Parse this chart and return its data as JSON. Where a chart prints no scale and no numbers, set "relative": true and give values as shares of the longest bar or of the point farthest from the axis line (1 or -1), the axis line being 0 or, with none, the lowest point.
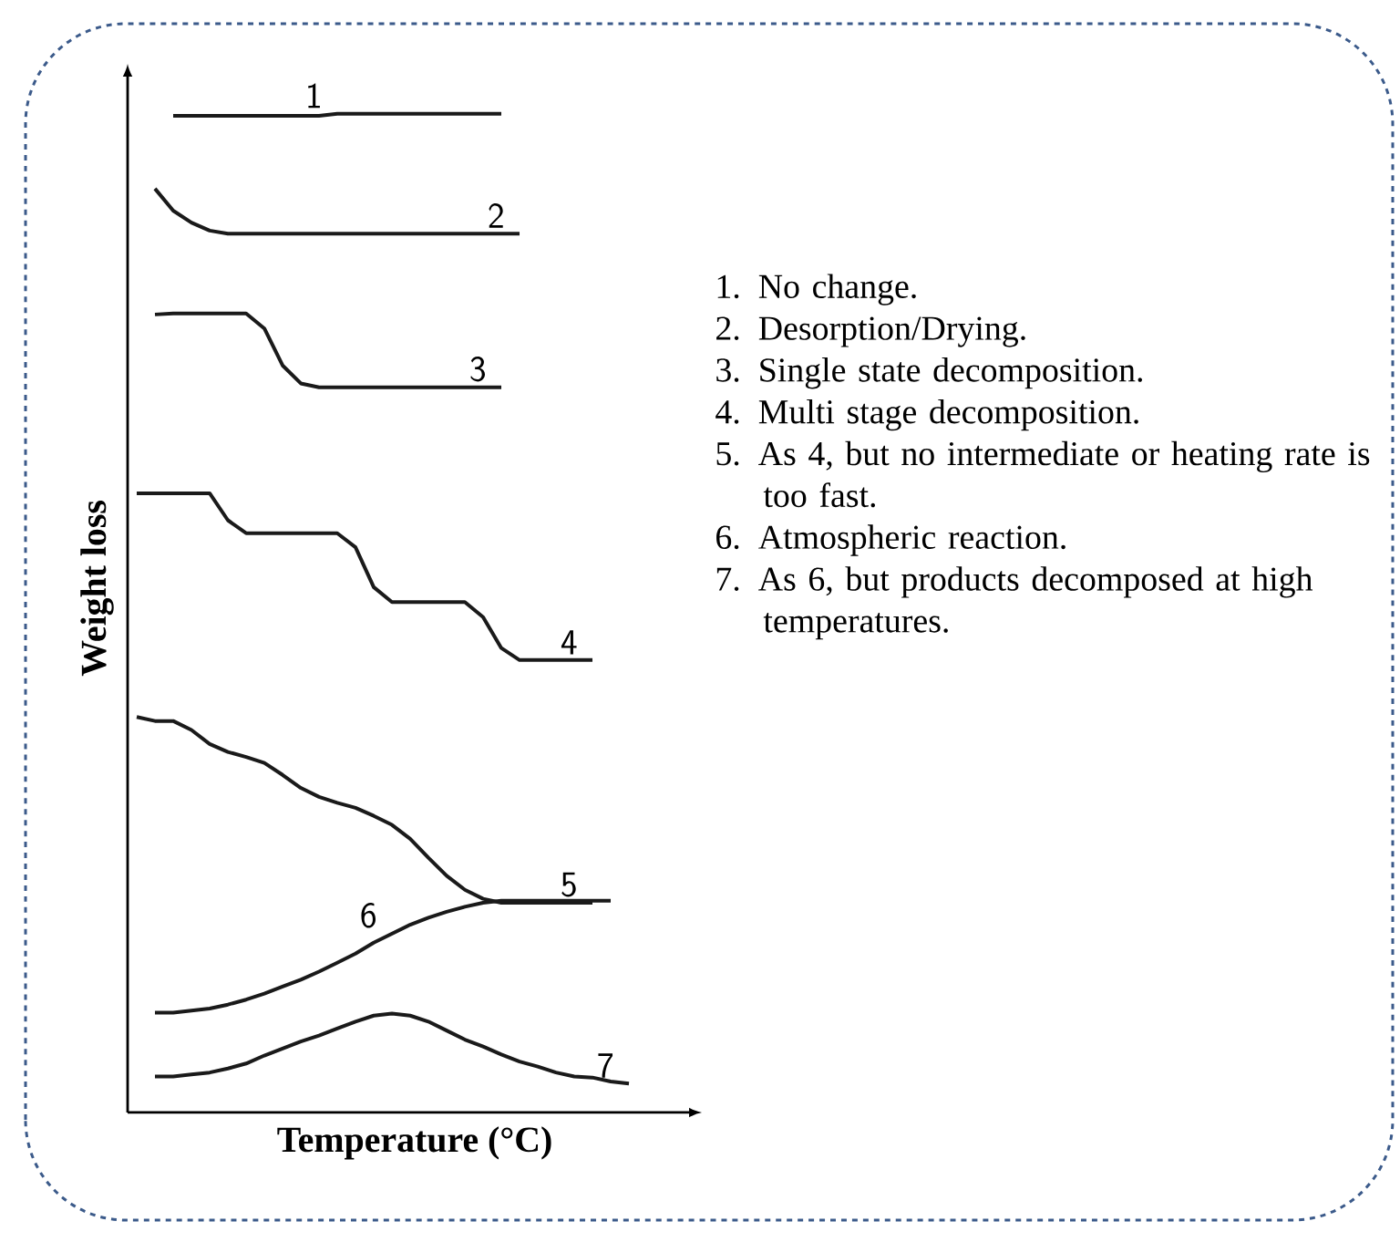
{
  "chart_data": {
    "type": "line",
    "relative": true,
    "xlabel": "Temperature (°C)",
    "ylabel": "Weight loss",
    "categories": [
      null,
      null,
      null,
      null,
      null,
      null,
      null,
      null,
      null,
      null,
      null,
      null,
      null,
      null,
      null,
      null,
      null,
      null,
      null,
      null,
      null,
      null,
      null,
      null,
      null,
      null,
      null,
      null
    ],
    "series": [
      {
        "name": "1",
        "color": "#1a1a1a",
        "values": [
          null,
          null,
          0.998,
          0.998,
          0.998,
          0.998,
          0.998,
          0.998,
          0.998,
          0.998,
          0.998,
          1.0,
          1.0,
          1.0,
          1.0,
          1.0,
          1.0,
          1.0,
          1.0,
          1.0,
          1.0,
          null,
          null,
          null,
          null,
          null,
          null,
          null
        ]
      },
      {
        "name": "2",
        "color": "#1a1a1a",
        "values": [
          null,
          0.925,
          0.903,
          0.891,
          0.883,
          0.88,
          0.88,
          0.88,
          0.88,
          0.88,
          0.88,
          0.88,
          0.88,
          0.88,
          0.88,
          0.88,
          0.88,
          0.88,
          0.88,
          0.88,
          0.88,
          0.88,
          null,
          null,
          null,
          null,
          null,
          null
        ]
      },
      {
        "name": "3",
        "color": "#1a1a1a",
        "values": [
          null,
          0.799,
          0.8,
          0.8,
          0.8,
          0.8,
          0.8,
          0.785,
          0.748,
          0.73,
          0.726,
          0.726,
          0.726,
          0.726,
          0.726,
          0.726,
          0.726,
          0.726,
          0.726,
          0.726,
          0.726,
          null,
          null,
          null,
          null,
          null,
          null,
          null
        ]
      },
      {
        "name": "4",
        "color": "#1a1a1a",
        "values": [
          0.62,
          0.62,
          0.62,
          0.62,
          0.62,
          0.593,
          0.58,
          0.58,
          0.58,
          0.58,
          0.58,
          0.58,
          0.566,
          0.526,
          0.511,
          0.511,
          0.511,
          0.511,
          0.511,
          0.496,
          0.465,
          0.453,
          0.453,
          0.453,
          0.453,
          0.453,
          null,
          null
        ]
      },
      {
        "name": "5",
        "color": "#1a1a1a",
        "values": [
          0.396,
          0.392,
          0.392,
          0.383,
          0.369,
          0.361,
          0.356,
          0.35,
          0.338,
          0.325,
          0.316,
          0.31,
          0.305,
          0.297,
          0.288,
          0.274,
          0.255,
          0.237,
          0.223,
          0.214,
          0.21,
          0.21,
          0.21,
          0.21,
          0.21,
          0.21,
          null,
          null
        ]
      },
      {
        "name": "6",
        "color": "#1a1a1a",
        "values": [
          null,
          0.1,
          0.1,
          0.102,
          0.104,
          0.108,
          0.113,
          0.119,
          0.126,
          0.133,
          0.141,
          0.15,
          0.159,
          0.17,
          0.179,
          0.188,
          0.195,
          0.201,
          0.206,
          0.21,
          0.212,
          0.212,
          0.212,
          0.212,
          0.212,
          0.212,
          0.212,
          null
        ]
      },
      {
        "name": "7",
        "color": "#1a1a1a",
        "values": [
          null,
          0.036,
          0.036,
          0.038,
          0.04,
          0.044,
          0.049,
          0.057,
          0.064,
          0.071,
          0.077,
          0.084,
          0.091,
          0.097,
          0.099,
          0.097,
          0.091,
          0.082,
          0.073,
          0.066,
          0.058,
          0.051,
          0.046,
          0.04,
          0.036,
          0.035,
          0.031,
          0.029
        ]
      }
    ],
    "annotations": [
      "1. No change.",
      "2. Desorption/Drying.",
      "3. Single state decomposition.",
      "4. Multi stage decomposition.",
      "5. As 4, but no intermediate or heating rate is too fast.",
      "6. Atmospheric reaction.",
      "7. As 6, but products decomposed at high temperatures."
    ]
  }
}
